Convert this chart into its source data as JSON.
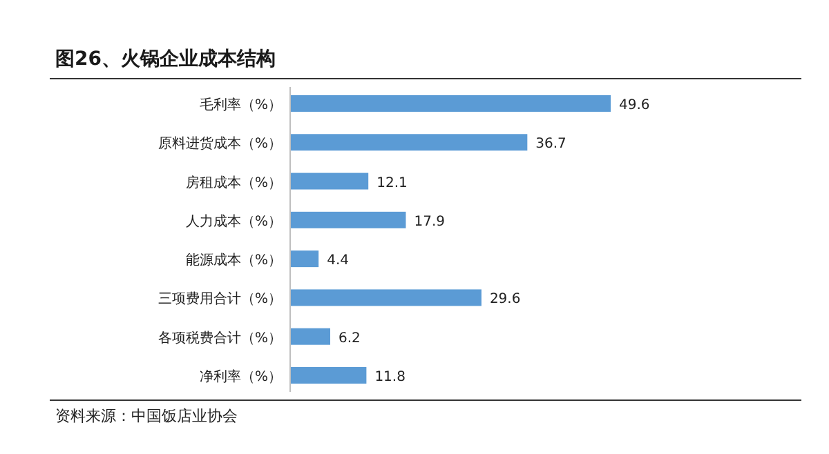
{
  "chart_data": {
    "type": "bar",
    "orientation": "horizontal",
    "title": "图26、火锅企业成本结构",
    "categories": [
      "毛利率（%）",
      "原料进货成本（%）",
      "房租成本（%）",
      "人力成本（%）",
      "能源成本（%）",
      "三项费用合计（%）",
      "各项税费合计（%）",
      "净利率（%）"
    ],
    "values": [
      49.6,
      36.7,
      12.1,
      17.9,
      4.4,
      29.6,
      6.2,
      11.8
    ],
    "color": "#5b9bd5",
    "data_labels": true,
    "annotations": [
      "资料来源：中国饭店业协会"
    ]
  }
}
